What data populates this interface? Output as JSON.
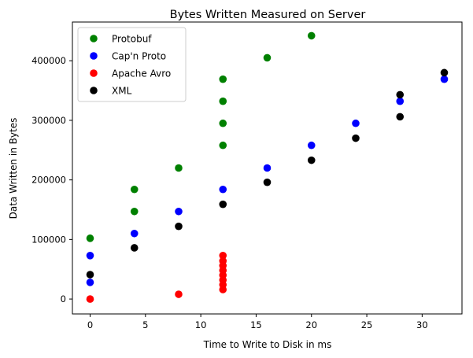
{
  "chart_data": {
    "type": "scatter",
    "title": "Bytes Written Measured on Server",
    "xlabel": "Time to Write to Disk in ms",
    "ylabel": "Data Written in Bytes",
    "xlim": [
      -1.6,
      33.6
    ],
    "ylim": [
      -25000,
      465000
    ],
    "xticks": [
      0,
      5,
      10,
      15,
      20,
      25,
      30
    ],
    "xtick_labels": [
      "0",
      "5",
      "10",
      "15",
      "20",
      "25",
      "30"
    ],
    "yticks": [
      0,
      100000,
      200000,
      300000,
      400000
    ],
    "ytick_labels": [
      "0",
      "100000",
      "200000",
      "300000",
      "400000"
    ],
    "grid": false,
    "legend_position": "top-left",
    "series": [
      {
        "name": "Protobuf",
        "color": "#008000",
        "points": [
          [
            0,
            102000
          ],
          [
            4,
            147000
          ],
          [
            4,
            184000
          ],
          [
            8,
            220000
          ],
          [
            12,
            258000
          ],
          [
            12,
            295000
          ],
          [
            12,
            332000
          ],
          [
            12,
            369000
          ],
          [
            16,
            405000
          ],
          [
            20,
            442000
          ]
        ]
      },
      {
        "name": "Cap'n Proto",
        "color": "#0000ff",
        "points": [
          [
            0,
            28000
          ],
          [
            0,
            73000
          ],
          [
            4,
            110000
          ],
          [
            8,
            147000
          ],
          [
            12,
            184000
          ],
          [
            16,
            220000
          ],
          [
            20,
            258000
          ],
          [
            24,
            295000
          ],
          [
            28,
            332000
          ],
          [
            32,
            369000
          ]
        ]
      },
      {
        "name": "Apache Avro",
        "color": "#ff0000",
        "points": [
          [
            0,
            0
          ],
          [
            8,
            8000
          ],
          [
            12,
            16000
          ],
          [
            12,
            24000
          ],
          [
            12,
            32000
          ],
          [
            12,
            40000
          ],
          [
            12,
            48000
          ],
          [
            12,
            56000
          ],
          [
            12,
            64000
          ],
          [
            12,
            73000
          ]
        ]
      },
      {
        "name": "XML",
        "color": "#000000",
        "points": [
          [
            0,
            41000
          ],
          [
            4,
            86000
          ],
          [
            8,
            122000
          ],
          [
            12,
            159000
          ],
          [
            16,
            196000
          ],
          [
            20,
            233000
          ],
          [
            24,
            270000
          ],
          [
            28,
            306000
          ],
          [
            28,
            343000
          ],
          [
            32,
            380000
          ]
        ]
      }
    ]
  }
}
